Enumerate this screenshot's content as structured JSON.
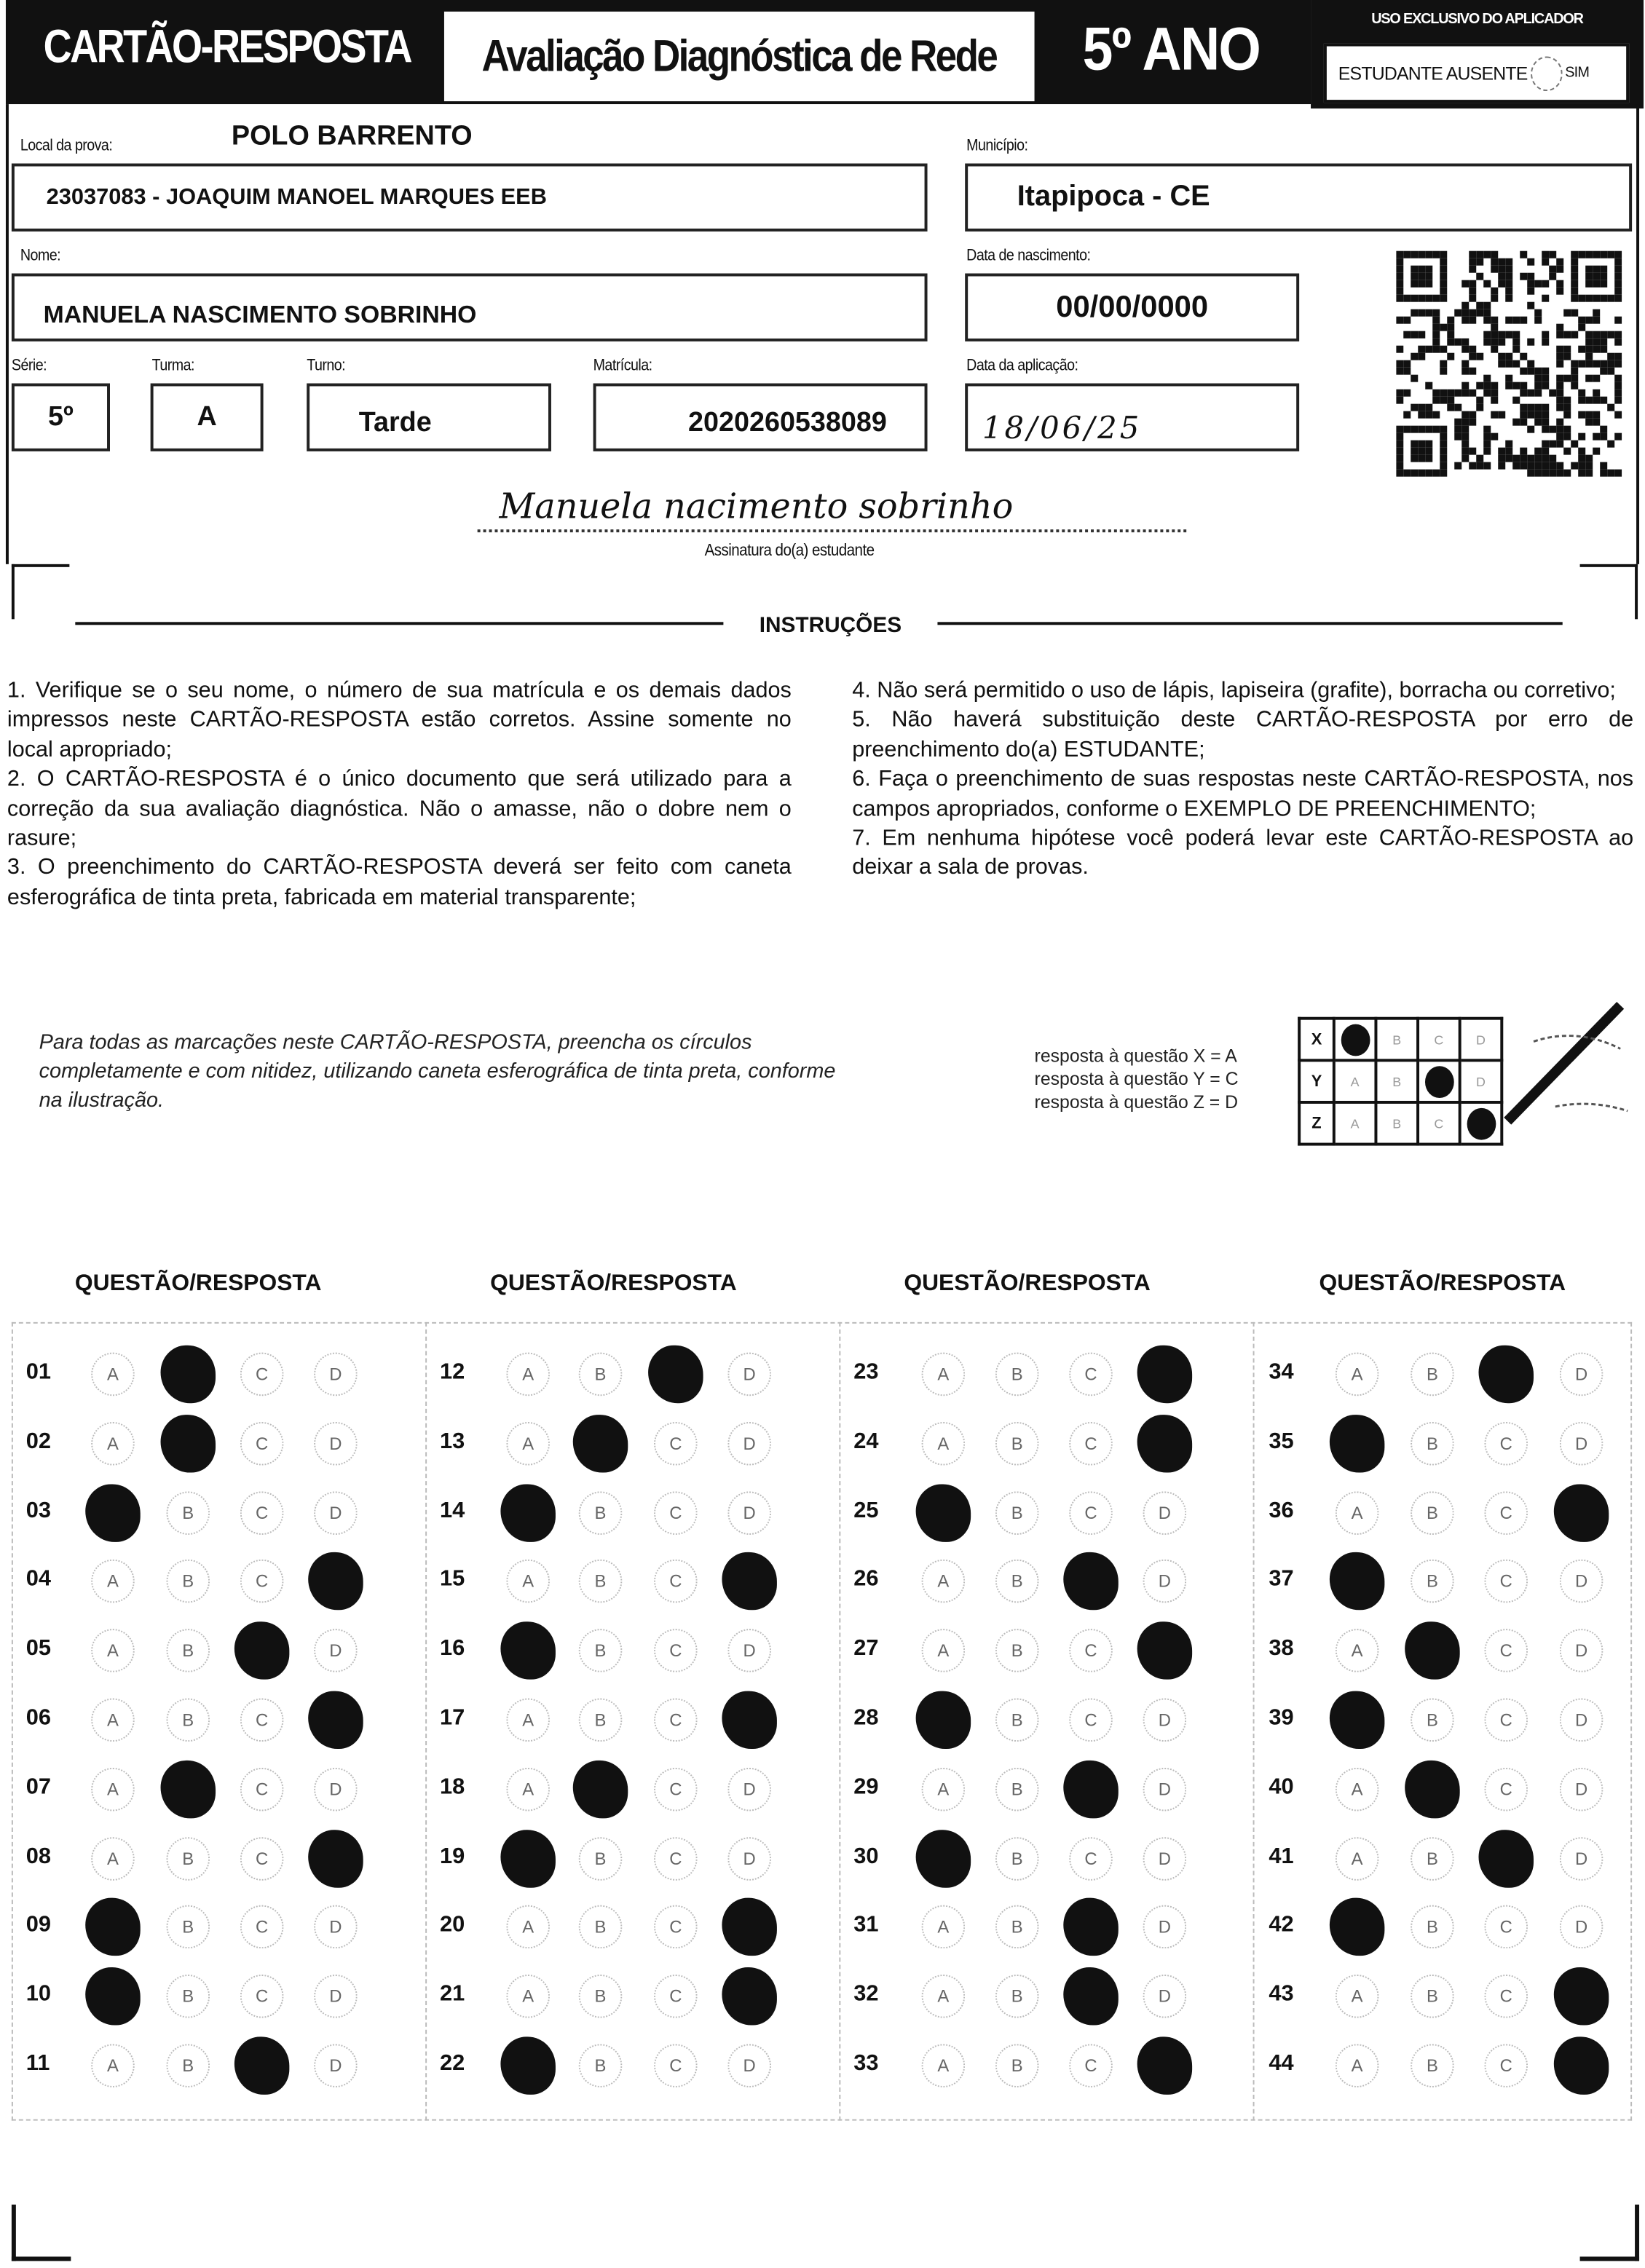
{
  "header": {
    "title": "CARTÃO-RESPOSTA",
    "exam": "Avaliação Diagnóstica de Rede",
    "grade": "5º ANO",
    "applicator_label": "USO EXCLUSIVO DO APLICADOR",
    "absent_label": "ESTUDANTE AUSENTE",
    "absent_option": "SIM"
  },
  "fields": {
    "local_label": "Local da prova:",
    "local_value": "POLO BARRENTO",
    "school": "23037083 - JOAQUIM MANOEL MARQUES EEB",
    "municipio_label": "Município:",
    "municipio": "Itapipoca - CE",
    "nome_label": "Nome:",
    "nome": "MANUELA NASCIMENTO SOBRINHO",
    "nascimento_label": "Data de nascimento:",
    "nascimento": "00/00/0000",
    "serie_label": "Série:",
    "serie": "5º",
    "turma_label": "Turma:",
    "turma": "A",
    "turno_label": "Turno:",
    "turno": "Tarde",
    "matricula_label": "Matrícula:",
    "matricula": "2020260538089",
    "aplicacao_label": "Data da aplicação:",
    "aplicacao": "18/06/25"
  },
  "signature": {
    "handwritten": "Manuela nacimento sobrinho",
    "label": "Assinatura do(a) estudante"
  },
  "instructions": {
    "title": "INSTRUÇÕES",
    "left": [
      "1. Verifique se o seu nome, o número de sua matrícula e os demais dados impressos neste CARTÃO-RESPOSTA estão corretos. Assine somente no local apropriado;",
      "2. O CARTÃO-RESPOSTA é o único documento que será utilizado para a correção da sua avaliação diagnóstica. Não o amasse, não o dobre nem o rasure;",
      "3. O preenchimento do CARTÃO-RESPOSTA deverá ser feito com caneta esferográfica de tinta preta, fabricada em material transparente;"
    ],
    "right": [
      "4. Não será permitido o uso de lápis, lapiseira (grafite), borracha ou corretivo;",
      "5. Não haverá substituição deste CARTÃO-RESPOSTA por erro de preenchimento do(a) ESTUDANTE;",
      "6. Faça o preenchimento de suas respostas neste CARTÃO-RESPOSTA, nos campos apropriados, conforme o EXEMPLO DE PREENCHIMENTO;",
      "7. Em nenhuma hipótese você poderá levar este CARTÃO-RESPOSTA ao deixar a sala de provas."
    ]
  },
  "example": {
    "text": "Para todas as marcações neste CARTÃO-RESPOSTA, preencha os círculos completamente e com nitidez, utilizando caneta esferográfica de tinta preta, conforme na ilustração.",
    "lines": [
      "resposta à questão X = A",
      "resposta à questão Y = C",
      "resposta à questão Z = D"
    ],
    "rows": [
      {
        "q": "X",
        "filled": "A"
      },
      {
        "q": "Y",
        "filled": "C"
      },
      {
        "q": "Z",
        "filled": "D"
      }
    ]
  },
  "answers": {
    "column_header": "QUESTÃO/RESPOSTA",
    "options": [
      "A",
      "B",
      "C",
      "D"
    ],
    "marked": [
      "B",
      "B",
      "A",
      "D",
      "C",
      "D",
      "B",
      "D",
      "A",
      "A",
      "C",
      "C",
      "B",
      "A",
      "D",
      "A",
      "D",
      "B",
      "A",
      "D",
      "D",
      "A",
      "D",
      "D",
      "A",
      "C",
      "D",
      "A",
      "C",
      "A",
      "C",
      "C",
      "D",
      "C",
      "A",
      "D",
      "A",
      "B",
      "A",
      "B",
      "C",
      "A",
      "D",
      "D"
    ]
  },
  "colors": {
    "ink": "#111111",
    "paper": "#ffffff"
  }
}
